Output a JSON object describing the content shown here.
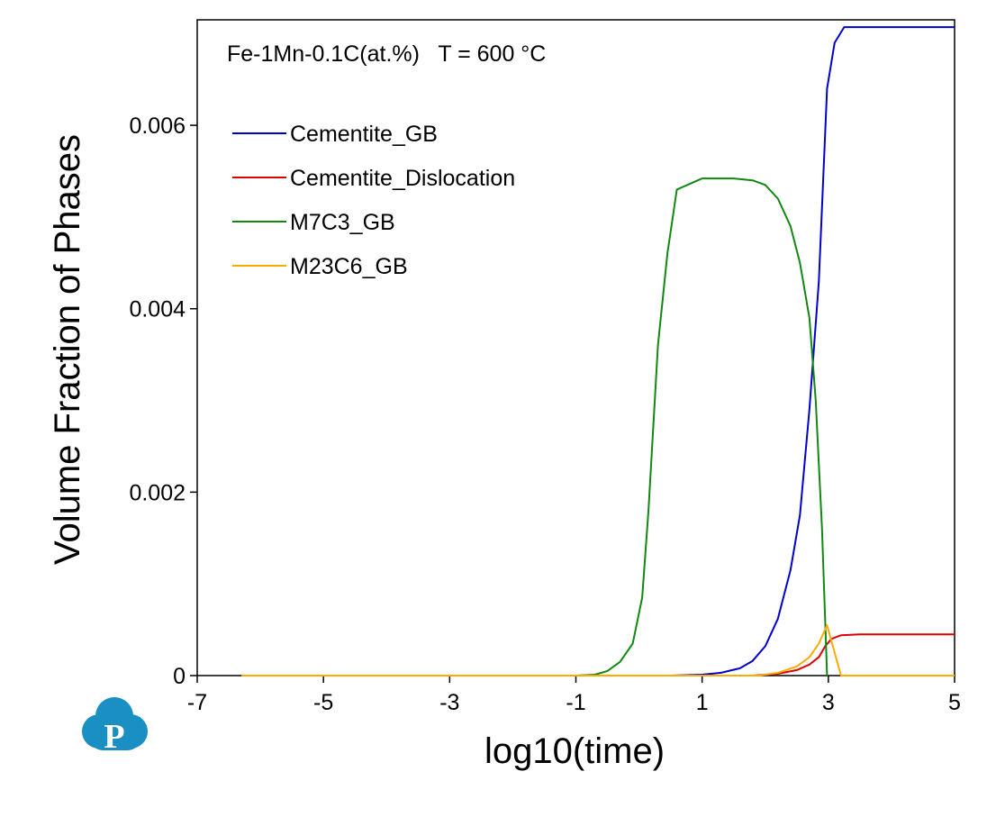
{
  "logo": {
    "letter": "P",
    "color": "#1a8fc4"
  },
  "chart_data": {
    "type": "line",
    "annotation": "Fe-1Mn-0.1C(at.%)   T = 600 °C",
    "xlabel": "log10(time)",
    "ylabel": "Volume Fraction of Phases",
    "xlim": [
      -7,
      5
    ],
    "ylim": [
      0,
      0.00715
    ],
    "xticks": [
      -7,
      -5,
      -3,
      -1,
      1,
      3,
      5
    ],
    "xtick_labels": [
      "-7",
      "-5",
      "-3",
      "-1",
      "1",
      "3",
      "5"
    ],
    "yticks": [
      0,
      0.002,
      0.004,
      0.006
    ],
    "ytick_labels": [
      "0",
      "0.002",
      "0.004",
      "0.006"
    ],
    "grid": false,
    "legend_position": "top-left",
    "series": [
      {
        "name": "Cementite_GB",
        "color": "#0000cc",
        "x": [
          -6.3,
          0.5,
          1.0,
          1.3,
          1.6,
          1.8,
          2.0,
          2.2,
          2.4,
          2.55,
          2.7,
          2.85,
          2.98,
          3.1,
          3.25,
          5.0
        ],
        "y": [
          0,
          0,
          1e-05,
          3e-05,
          8e-05,
          0.00016,
          0.00032,
          0.00062,
          0.00115,
          0.00175,
          0.0029,
          0.0043,
          0.0064,
          0.0069,
          0.00707,
          0.00707
        ]
      },
      {
        "name": "Cementite_Dislocation",
        "color": "#dd0000",
        "x": [
          -6.3,
          1.8,
          2.2,
          2.5,
          2.7,
          2.85,
          2.95,
          3.05,
          3.2,
          3.5,
          5.0
        ],
        "y": [
          0,
          0,
          2e-05,
          6e-05,
          0.00012,
          0.0002,
          0.00032,
          0.0004,
          0.00044,
          0.00045,
          0.00045
        ]
      },
      {
        "name": "M7C3_GB",
        "color": "#118811",
        "x": [
          -6.3,
          -1.0,
          -0.7,
          -0.5,
          -0.3,
          -0.1,
          0.05,
          0.15,
          0.3,
          0.45,
          0.6,
          1.0,
          1.5,
          1.8,
          2.0,
          2.2,
          2.4,
          2.55,
          2.7,
          2.8,
          2.9,
          2.98
        ],
        "y": [
          0,
          0,
          1e-05,
          5e-05,
          0.00015,
          0.00035,
          0.00085,
          0.0018,
          0.0036,
          0.0046,
          0.0053,
          0.00542,
          0.00542,
          0.0054,
          0.00535,
          0.0052,
          0.0049,
          0.0045,
          0.0039,
          0.003,
          0.0016,
          0.0
        ]
      },
      {
        "name": "M23C6_GB",
        "color": "#ffaa00",
        "x": [
          -6.3,
          1.9,
          2.2,
          2.5,
          2.7,
          2.85,
          2.98,
          3.08,
          3.2,
          5.0
        ],
        "y": [
          0,
          0,
          3e-05,
          0.0001,
          0.0002,
          0.00035,
          0.00055,
          0.0003,
          0.0,
          0.0
        ]
      }
    ]
  }
}
